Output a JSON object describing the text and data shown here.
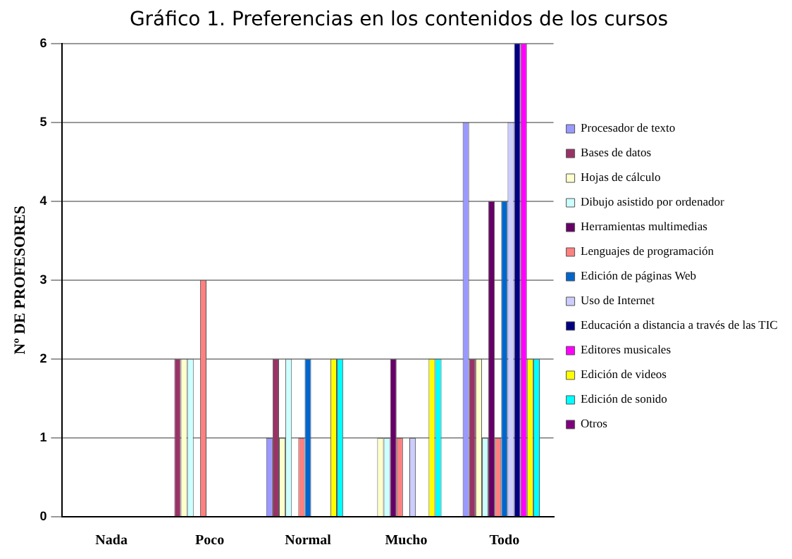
{
  "chart_data": {
    "type": "bar",
    "title": "Gráfico 1. Preferencias en los contenidos de los cursos",
    "ylabel": "Nº DE PROFESORES",
    "categories": [
      "Nada",
      "Poco",
      "Normal",
      "Mucho",
      "Todo"
    ],
    "ylim": [
      0,
      6
    ],
    "yticks": [
      0,
      1,
      2,
      3,
      4,
      5,
      6
    ],
    "grid": "y",
    "legend": "right",
    "series": [
      {
        "name": "Procesador de texto",
        "color": "#9999ff",
        "values": [
          0,
          0,
          1,
          0,
          5
        ]
      },
      {
        "name": "Bases de datos",
        "color": "#993366",
        "values": [
          0,
          2,
          2,
          0,
          2
        ]
      },
      {
        "name": "Hojas de cálculo",
        "color": "#ffffcc",
        "values": [
          0,
          2,
          1,
          1,
          2
        ]
      },
      {
        "name": "Dibujo asistido por ordenador",
        "color": "#ccffff",
        "values": [
          0,
          2,
          2,
          1,
          1
        ]
      },
      {
        "name": "Herramientas multimedias",
        "color": "#660066",
        "values": [
          0,
          0,
          0,
          2,
          4
        ]
      },
      {
        "name": "Lenguajes de programación",
        "color": "#ff8080",
        "values": [
          0,
          3,
          1,
          1,
          1
        ]
      },
      {
        "name": "Edición de páginas Web",
        "color": "#0066cc",
        "values": [
          0,
          0,
          2,
          0,
          4
        ]
      },
      {
        "name": "Uso de Internet",
        "color": "#ccccff",
        "values": [
          0,
          0,
          0,
          1,
          5
        ]
      },
      {
        "name": "Educación a distancia a través de las TIC",
        "color": "#000080",
        "values": [
          0,
          0,
          0,
          0,
          6
        ]
      },
      {
        "name": "Editores musicales",
        "color": "#ff00ff",
        "values": [
          0,
          0,
          0,
          0,
          6
        ]
      },
      {
        "name": "Edición de videos",
        "color": "#ffff00",
        "values": [
          0,
          0,
          2,
          2,
          2
        ]
      },
      {
        "name": "Edición de sonido",
        "color": "#00ffff",
        "values": [
          0,
          0,
          2,
          2,
          2
        ]
      },
      {
        "name": "Otros",
        "color": "#800080",
        "values": [
          0,
          0,
          0,
          0,
          0
        ]
      }
    ]
  }
}
